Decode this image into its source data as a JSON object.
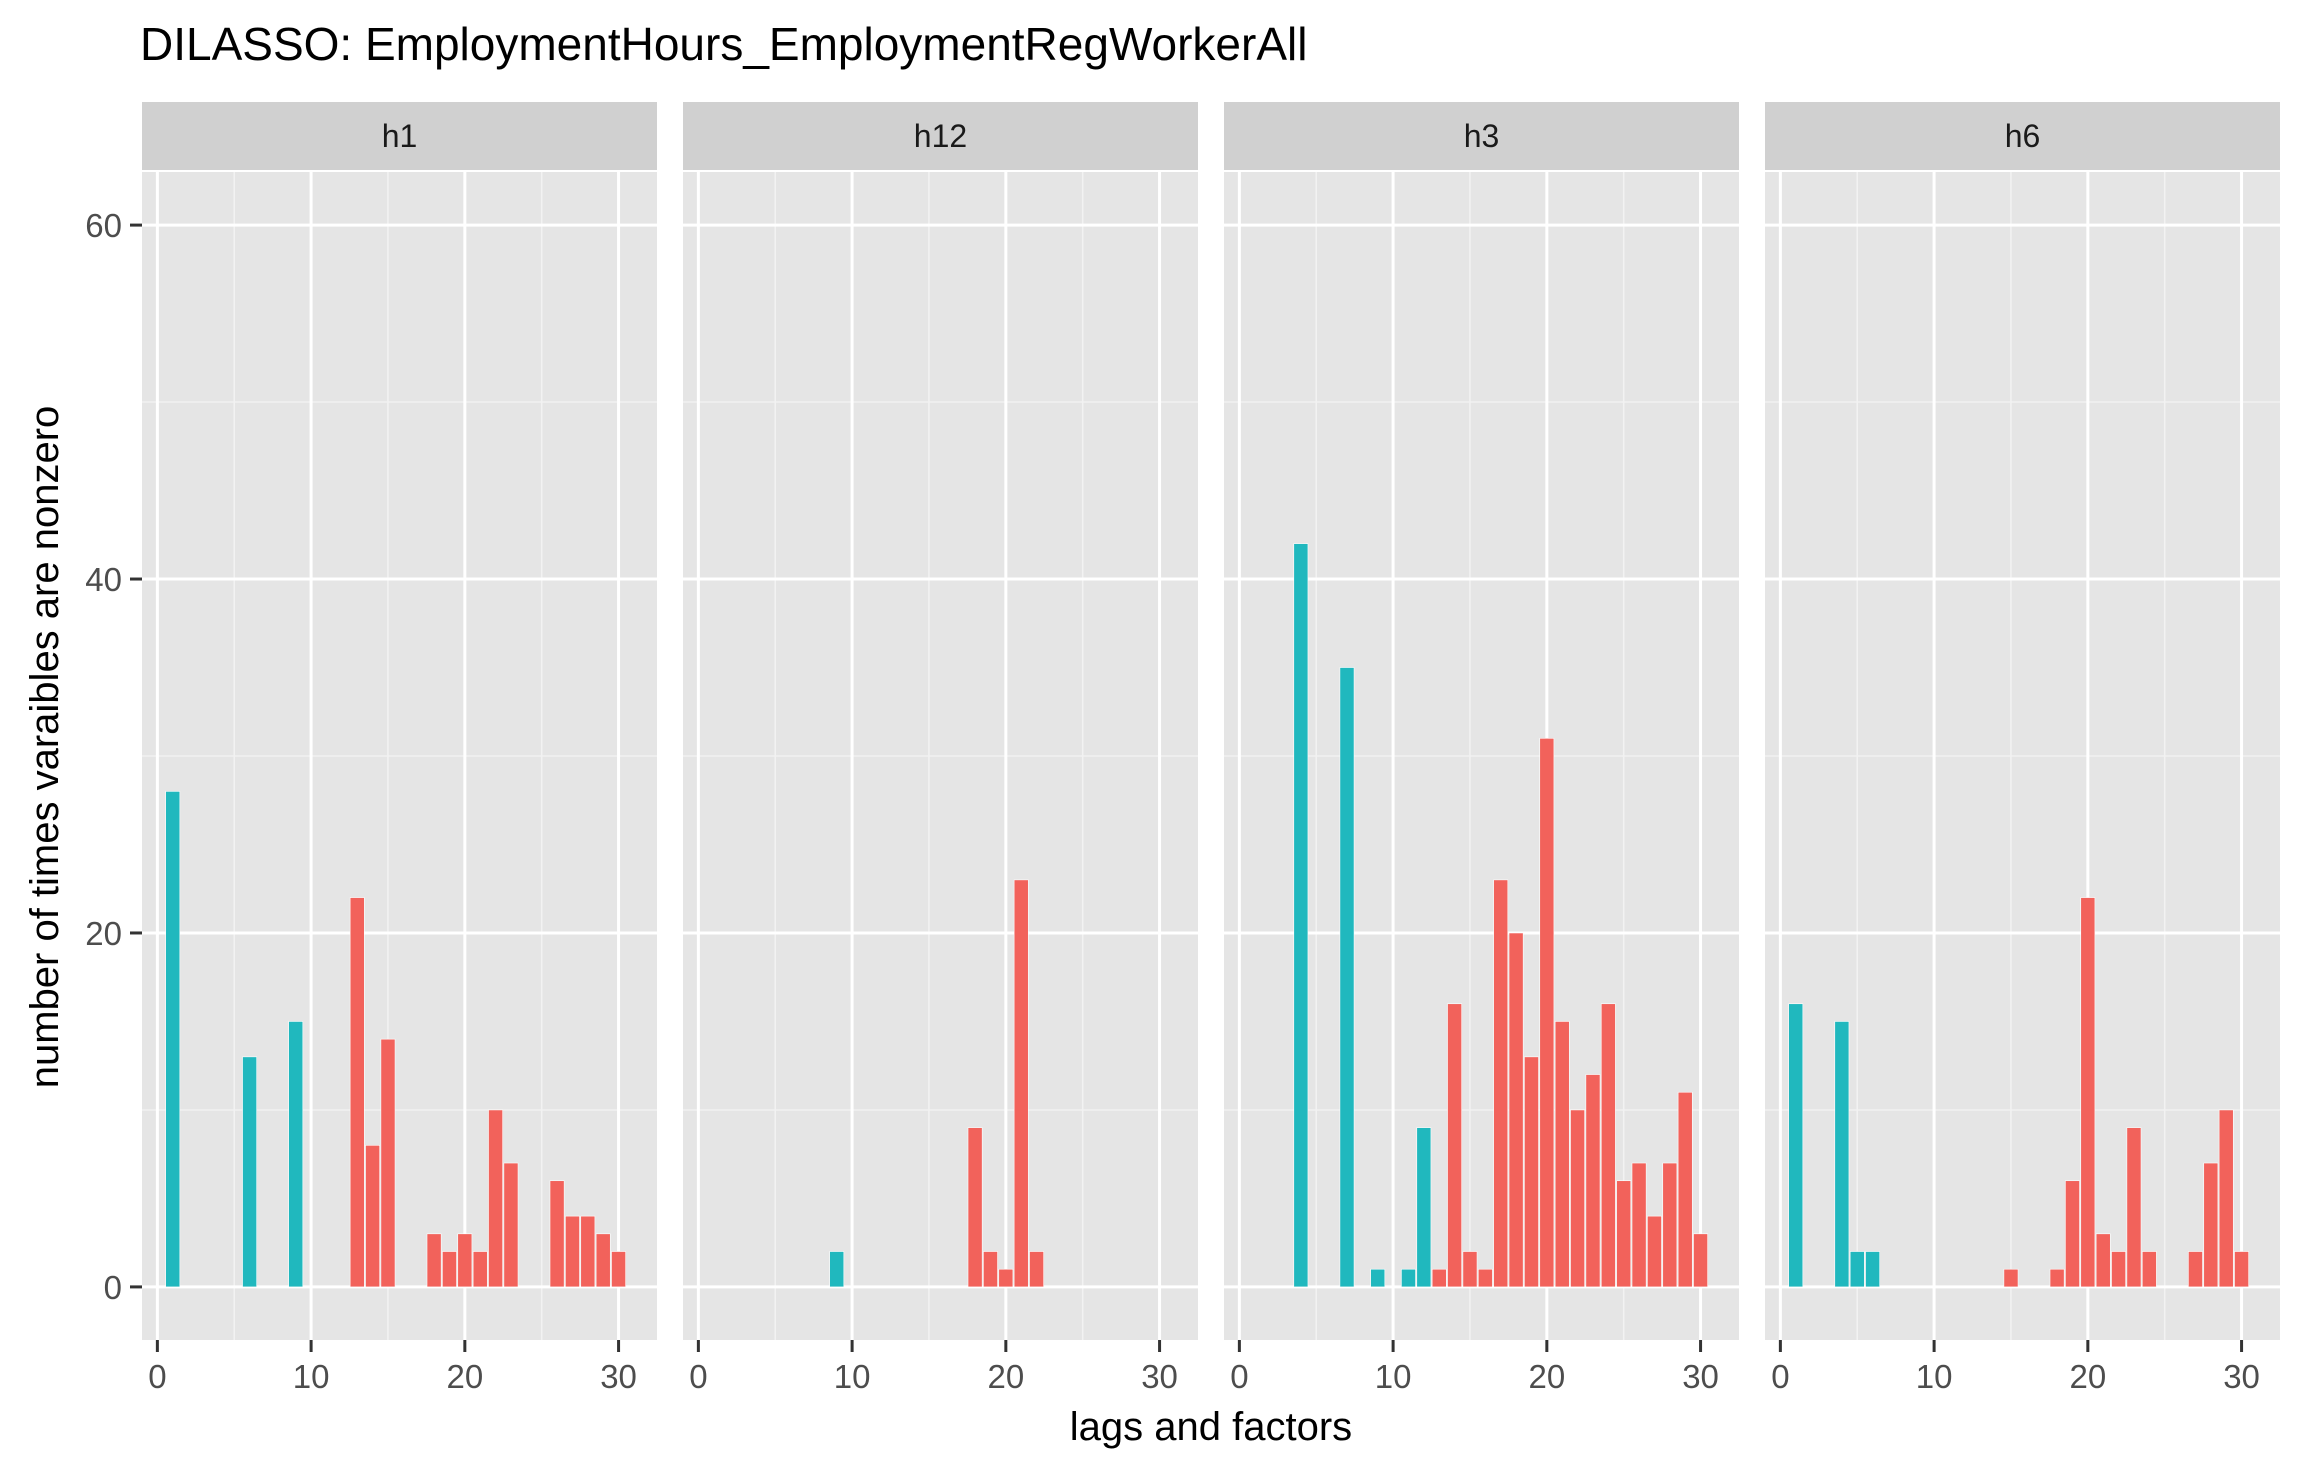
{
  "chart_data": {
    "type": "bar",
    "title": "DILASSO: EmploymentHours_EmploymentRegWorkerAll",
    "xlabel": "lags and factors",
    "ylabel": "number of times varaibles are nonzero",
    "xlim": [
      -1,
      32.5
    ],
    "ylim": [
      -3,
      63
    ],
    "x_ticks": [
      0,
      10,
      20,
      30
    ],
    "y_ticks": [
      0,
      20,
      40,
      60
    ],
    "grid": true,
    "legend": "none",
    "colors": {
      "lag": "#20B8BE",
      "factor": "#F2625B",
      "panel_bg": "#E5E5E5",
      "strip_bg": "#D0D0D0"
    },
    "panels": [
      {
        "name": "h1",
        "bars": [
          {
            "x": 1,
            "y": 28,
            "group": "lag"
          },
          {
            "x": 6,
            "y": 13,
            "group": "lag"
          },
          {
            "x": 9,
            "y": 15,
            "group": "lag"
          },
          {
            "x": 13,
            "y": 22,
            "group": "factor"
          },
          {
            "x": 14,
            "y": 8,
            "group": "factor"
          },
          {
            "x": 15,
            "y": 14,
            "group": "factor"
          },
          {
            "x": 18,
            "y": 3,
            "group": "factor"
          },
          {
            "x": 19,
            "y": 2,
            "group": "factor"
          },
          {
            "x": 20,
            "y": 3,
            "group": "factor"
          },
          {
            "x": 21,
            "y": 2,
            "group": "factor"
          },
          {
            "x": 22,
            "y": 10,
            "group": "factor"
          },
          {
            "x": 23,
            "y": 7,
            "group": "factor"
          },
          {
            "x": 26,
            "y": 6,
            "group": "factor"
          },
          {
            "x": 27,
            "y": 4,
            "group": "factor"
          },
          {
            "x": 28,
            "y": 4,
            "group": "factor"
          },
          {
            "x": 29,
            "y": 3,
            "group": "factor"
          },
          {
            "x": 30,
            "y": 2,
            "group": "factor"
          }
        ]
      },
      {
        "name": "h12",
        "bars": [
          {
            "x": 9,
            "y": 2,
            "group": "lag"
          },
          {
            "x": 18,
            "y": 9,
            "group": "factor"
          },
          {
            "x": 19,
            "y": 2,
            "group": "factor"
          },
          {
            "x": 20,
            "y": 1,
            "group": "factor"
          },
          {
            "x": 21,
            "y": 23,
            "group": "factor"
          },
          {
            "x": 22,
            "y": 2,
            "group": "factor"
          }
        ]
      },
      {
        "name": "h3",
        "bars": [
          {
            "x": 4,
            "y": 42,
            "group": "lag"
          },
          {
            "x": 7,
            "y": 35,
            "group": "lag"
          },
          {
            "x": 9,
            "y": 1,
            "group": "lag"
          },
          {
            "x": 11,
            "y": 1,
            "group": "lag"
          },
          {
            "x": 12,
            "y": 9,
            "group": "lag"
          },
          {
            "x": 13,
            "y": 1,
            "group": "factor"
          },
          {
            "x": 14,
            "y": 16,
            "group": "factor"
          },
          {
            "x": 15,
            "y": 2,
            "group": "factor"
          },
          {
            "x": 16,
            "y": 1,
            "group": "factor"
          },
          {
            "x": 17,
            "y": 23,
            "group": "factor"
          },
          {
            "x": 18,
            "y": 20,
            "group": "factor"
          },
          {
            "x": 19,
            "y": 13,
            "group": "factor"
          },
          {
            "x": 20,
            "y": 31,
            "group": "factor"
          },
          {
            "x": 21,
            "y": 15,
            "group": "factor"
          },
          {
            "x": 22,
            "y": 10,
            "group": "factor"
          },
          {
            "x": 23,
            "y": 12,
            "group": "factor"
          },
          {
            "x": 24,
            "y": 16,
            "group": "factor"
          },
          {
            "x": 25,
            "y": 6,
            "group": "factor"
          },
          {
            "x": 26,
            "y": 7,
            "group": "factor"
          },
          {
            "x": 27,
            "y": 4,
            "group": "factor"
          },
          {
            "x": 28,
            "y": 7,
            "group": "factor"
          },
          {
            "x": 29,
            "y": 11,
            "group": "factor"
          },
          {
            "x": 30,
            "y": 3,
            "group": "factor"
          }
        ]
      },
      {
        "name": "h6",
        "bars": [
          {
            "x": 1,
            "y": 16,
            "group": "lag"
          },
          {
            "x": 4,
            "y": 15,
            "group": "lag"
          },
          {
            "x": 5,
            "y": 2,
            "group": "lag"
          },
          {
            "x": 6,
            "y": 2,
            "group": "lag"
          },
          {
            "x": 15,
            "y": 1,
            "group": "factor"
          },
          {
            "x": 18,
            "y": 1,
            "group": "factor"
          },
          {
            "x": 19,
            "y": 6,
            "group": "factor"
          },
          {
            "x": 20,
            "y": 22,
            "group": "factor"
          },
          {
            "x": 21,
            "y": 3,
            "group": "factor"
          },
          {
            "x": 22,
            "y": 2,
            "group": "factor"
          },
          {
            "x": 23,
            "y": 9,
            "group": "factor"
          },
          {
            "x": 24,
            "y": 2,
            "group": "factor"
          },
          {
            "x": 27,
            "y": 2,
            "group": "factor"
          },
          {
            "x": 28,
            "y": 7,
            "group": "factor"
          },
          {
            "x": 29,
            "y": 10,
            "group": "factor"
          },
          {
            "x": 30,
            "y": 2,
            "group": "factor"
          }
        ]
      }
    ]
  }
}
